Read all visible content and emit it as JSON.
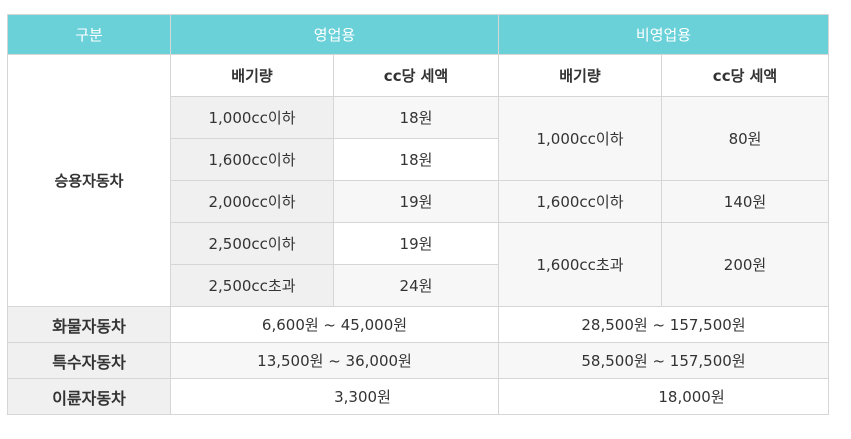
{
  "header": {
    "category": "구분",
    "commercial": "영업용",
    "noncommercial": "비영업용"
  },
  "subheader": {
    "commercial_displacement": "배기량",
    "commercial_tax_per_cc": "cc당 세액",
    "noncommercial_displacement": "배기량",
    "noncommercial_tax_per_cc": "cc당 세액"
  },
  "passenger": {
    "label": "승용자동차",
    "commercial_rows": [
      {
        "displacement": "1,000cc이하",
        "tax": "18원"
      },
      {
        "displacement": "1,600cc이하",
        "tax": "18원"
      },
      {
        "displacement": "2,000cc이하",
        "tax": "19원"
      },
      {
        "displacement": "2,500cc이하",
        "tax": "19원"
      },
      {
        "displacement": "2,500cc초과",
        "tax": "24원"
      }
    ],
    "noncommercial_rows": [
      {
        "displacement": "1,000cc이하",
        "tax": "80원"
      },
      {
        "displacement": "1,600cc이하",
        "tax": "140원"
      },
      {
        "displacement": "1,600cc초과",
        "tax": "200원"
      }
    ]
  },
  "cargo": {
    "label": "화물자동차",
    "commercial": "6,600원 ~ 45,000원",
    "noncommercial": "28,500원 ~ 157,500원"
  },
  "special": {
    "label": "특수자동차",
    "commercial": "13,500원 ~ 36,000원",
    "noncommercial": "58,500원 ~ 157,500원"
  },
  "twowheel": {
    "label": "이륜자동차",
    "commercial": "3,300원",
    "noncommercial": "18,000원"
  }
}
